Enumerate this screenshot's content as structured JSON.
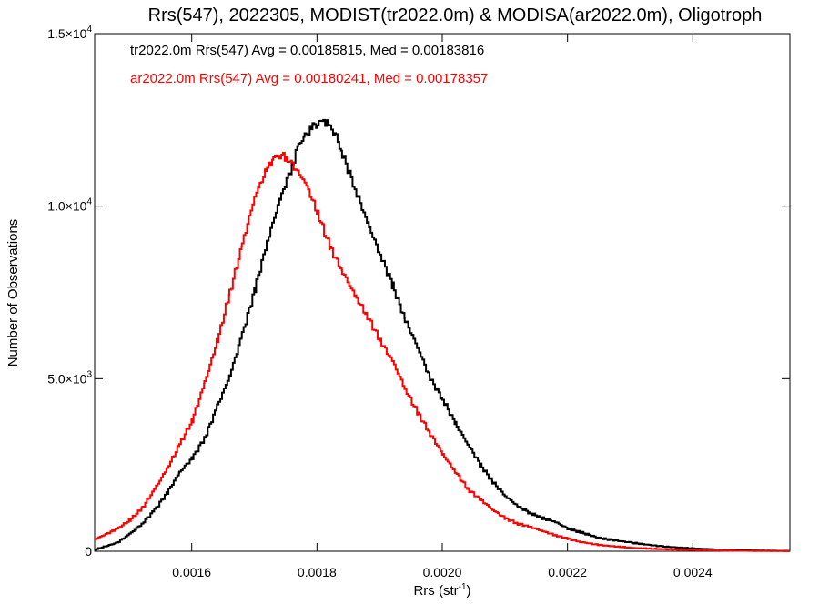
{
  "chart_data": {
    "type": "line",
    "title": "Rrs(547), 2022305, MODIST(tr2022.0m) & MODISA(ar2022.0m), Oligotroph",
    "xlabel": "Rrs (str",
    "xlabel_sup": "-1",
    "xlabel_end": ")",
    "ylabel": "Number of Observations",
    "xlim": [
      0.001445,
      0.002555
    ],
    "ylim": [
      0,
      15000
    ],
    "x_ticks": [
      {
        "value": 0.0016,
        "label": "0.0016"
      },
      {
        "value": 0.0018,
        "label": "0.0018"
      },
      {
        "value": 0.002,
        "label": "0.0020"
      },
      {
        "value": 0.0022,
        "label": "0.0022"
      },
      {
        "value": 0.0024,
        "label": "0.0024"
      }
    ],
    "y_ticks": [
      {
        "value": 0,
        "mant": "0",
        "exp": ""
      },
      {
        "value": 5000,
        "mant": "5.0×10",
        "exp": "3"
      },
      {
        "value": 10000,
        "mant": "1.0×10",
        "exp": "4"
      },
      {
        "value": 15000,
        "mant": "1.5×10",
        "exp": "4"
      }
    ],
    "annotations": [
      {
        "text": "tr2022.0m Rrs(547) Avg = 0.00185815, Med = 0.00183816",
        "color": "#000000"
      },
      {
        "text": "ar2022.0m Rrs(547) Avg = 0.00180241, Med = 0.00178357",
        "color": "#ff0000"
      }
    ],
    "series": [
      {
        "color": "#000000",
        "x": [
          0.001445,
          0.00148,
          0.0015,
          0.00152,
          0.00154,
          0.00156,
          0.00158,
          0.0016,
          0.00162,
          0.00164,
          0.00166,
          0.00168,
          0.0017,
          0.00172,
          0.00174,
          0.00176,
          0.00177,
          0.00178,
          0.00179,
          0.0018,
          0.00181,
          0.00182,
          0.00183,
          0.00184,
          0.00186,
          0.00188,
          0.0019,
          0.00192,
          0.00194,
          0.00196,
          0.00198,
          0.002,
          0.00202,
          0.00204,
          0.00206,
          0.00208,
          0.0021,
          0.00212,
          0.00214,
          0.00216,
          0.00218,
          0.0022,
          0.00222,
          0.00225,
          0.0023,
          0.00235,
          0.0024,
          0.00245,
          0.0025,
          0.002555
        ],
        "y": [
          50,
          250,
          500,
          800,
          1200,
          1700,
          2300,
          2700,
          3300,
          4200,
          5100,
          6300,
          7600,
          9000,
          10200,
          11200,
          11800,
          12000,
          12300,
          12400,
          12500,
          12300,
          12000,
          11500,
          10500,
          9500,
          8600,
          7700,
          6700,
          5900,
          5000,
          4400,
          3700,
          3100,
          2500,
          2000,
          1600,
          1300,
          1100,
          950,
          850,
          650,
          550,
          380,
          250,
          140,
          80,
          40,
          20,
          10
        ]
      },
      {
        "color": "#ff0000",
        "x": [
          0.001445,
          0.00148,
          0.0015,
          0.00152,
          0.00154,
          0.00156,
          0.00158,
          0.0016,
          0.00162,
          0.00164,
          0.00166,
          0.00168,
          0.0017,
          0.00172,
          0.00173,
          0.00174,
          0.00175,
          0.00176,
          0.00178,
          0.0018,
          0.00182,
          0.00184,
          0.00186,
          0.00188,
          0.0019,
          0.00192,
          0.00194,
          0.00196,
          0.00198,
          0.002,
          0.00202,
          0.00204,
          0.00206,
          0.00208,
          0.0021,
          0.00212,
          0.00214,
          0.00216,
          0.00218,
          0.0022,
          0.00222,
          0.00225,
          0.0023,
          0.00235,
          0.0024,
          0.00245,
          0.0025,
          0.002555
        ],
        "y": [
          350,
          650,
          900,
          1250,
          1800,
          2400,
          3100,
          3800,
          4900,
          6100,
          7500,
          8900,
          10300,
          11100,
          11400,
          11500,
          11400,
          11200,
          10700,
          9800,
          8800,
          8100,
          7400,
          6800,
          6100,
          5500,
          4700,
          4000,
          3400,
          2800,
          2300,
          1800,
          1500,
          1200,
          950,
          800,
          700,
          580,
          460,
          360,
          270,
          180,
          100,
          60,
          40,
          20,
          10,
          5
        ]
      }
    ]
  }
}
